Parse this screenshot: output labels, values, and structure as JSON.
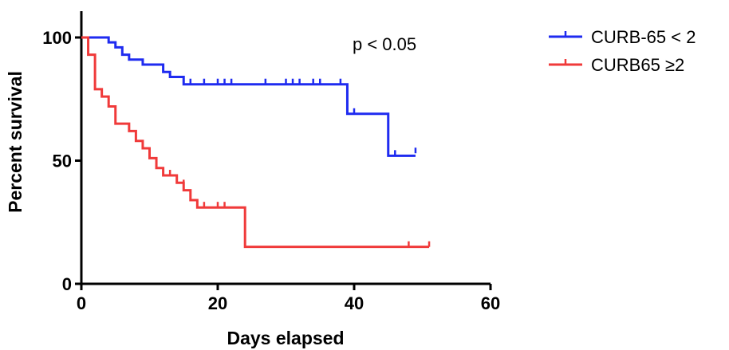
{
  "chart_data": {
    "type": "line",
    "subtype": "kaplan-meier-step",
    "xlabel": "Days elapsed",
    "ylabel": "Percent survival",
    "xlim": [
      0,
      60
    ],
    "ylim": [
      0,
      100
    ],
    "x_ticks": [
      0,
      20,
      40,
      60
    ],
    "y_ticks": [
      0,
      50,
      100
    ],
    "grid": false,
    "legend_position": "top-right",
    "annotation": "p < 0.05",
    "series": [
      {
        "name": "CURB-65 < 2",
        "color": "#1f2bf0",
        "steps": [
          [
            0,
            100
          ],
          [
            4,
            98
          ],
          [
            5,
            96
          ],
          [
            6,
            93
          ],
          [
            7,
            91
          ],
          [
            9,
            89
          ],
          [
            12,
            86
          ],
          [
            13,
            84
          ],
          [
            15,
            81
          ],
          [
            39,
            69
          ],
          [
            45,
            52
          ],
          [
            49,
            52
          ]
        ],
        "censored": [
          [
            16,
            81
          ],
          [
            18,
            81
          ],
          [
            20,
            81
          ],
          [
            21,
            81
          ],
          [
            22,
            81
          ],
          [
            27,
            81
          ],
          [
            30,
            81
          ],
          [
            31,
            81
          ],
          [
            32,
            81
          ],
          [
            34,
            81
          ],
          [
            35,
            81
          ],
          [
            38,
            81
          ],
          [
            40,
            69
          ],
          [
            46,
            52
          ],
          [
            49,
            53
          ]
        ]
      },
      {
        "name": "CURB65 ≥2",
        "color": "#f03a3a",
        "steps": [
          [
            0,
            100
          ],
          [
            1,
            93
          ],
          [
            2,
            79
          ],
          [
            3,
            76
          ],
          [
            4,
            72
          ],
          [
            5,
            65
          ],
          [
            7,
            62
          ],
          [
            8,
            58
          ],
          [
            9,
            55
          ],
          [
            10,
            51
          ],
          [
            11,
            47
          ],
          [
            12,
            44
          ],
          [
            14,
            41
          ],
          [
            15,
            38
          ],
          [
            16,
            34
          ],
          [
            17,
            31
          ],
          [
            24,
            15
          ],
          [
            51,
            15
          ]
        ],
        "censored": [
          [
            13,
            44
          ],
          [
            15,
            40
          ],
          [
            18,
            31
          ],
          [
            20,
            31
          ],
          [
            21,
            31
          ],
          [
            48,
            15
          ],
          [
            51,
            15
          ]
        ]
      }
    ]
  }
}
